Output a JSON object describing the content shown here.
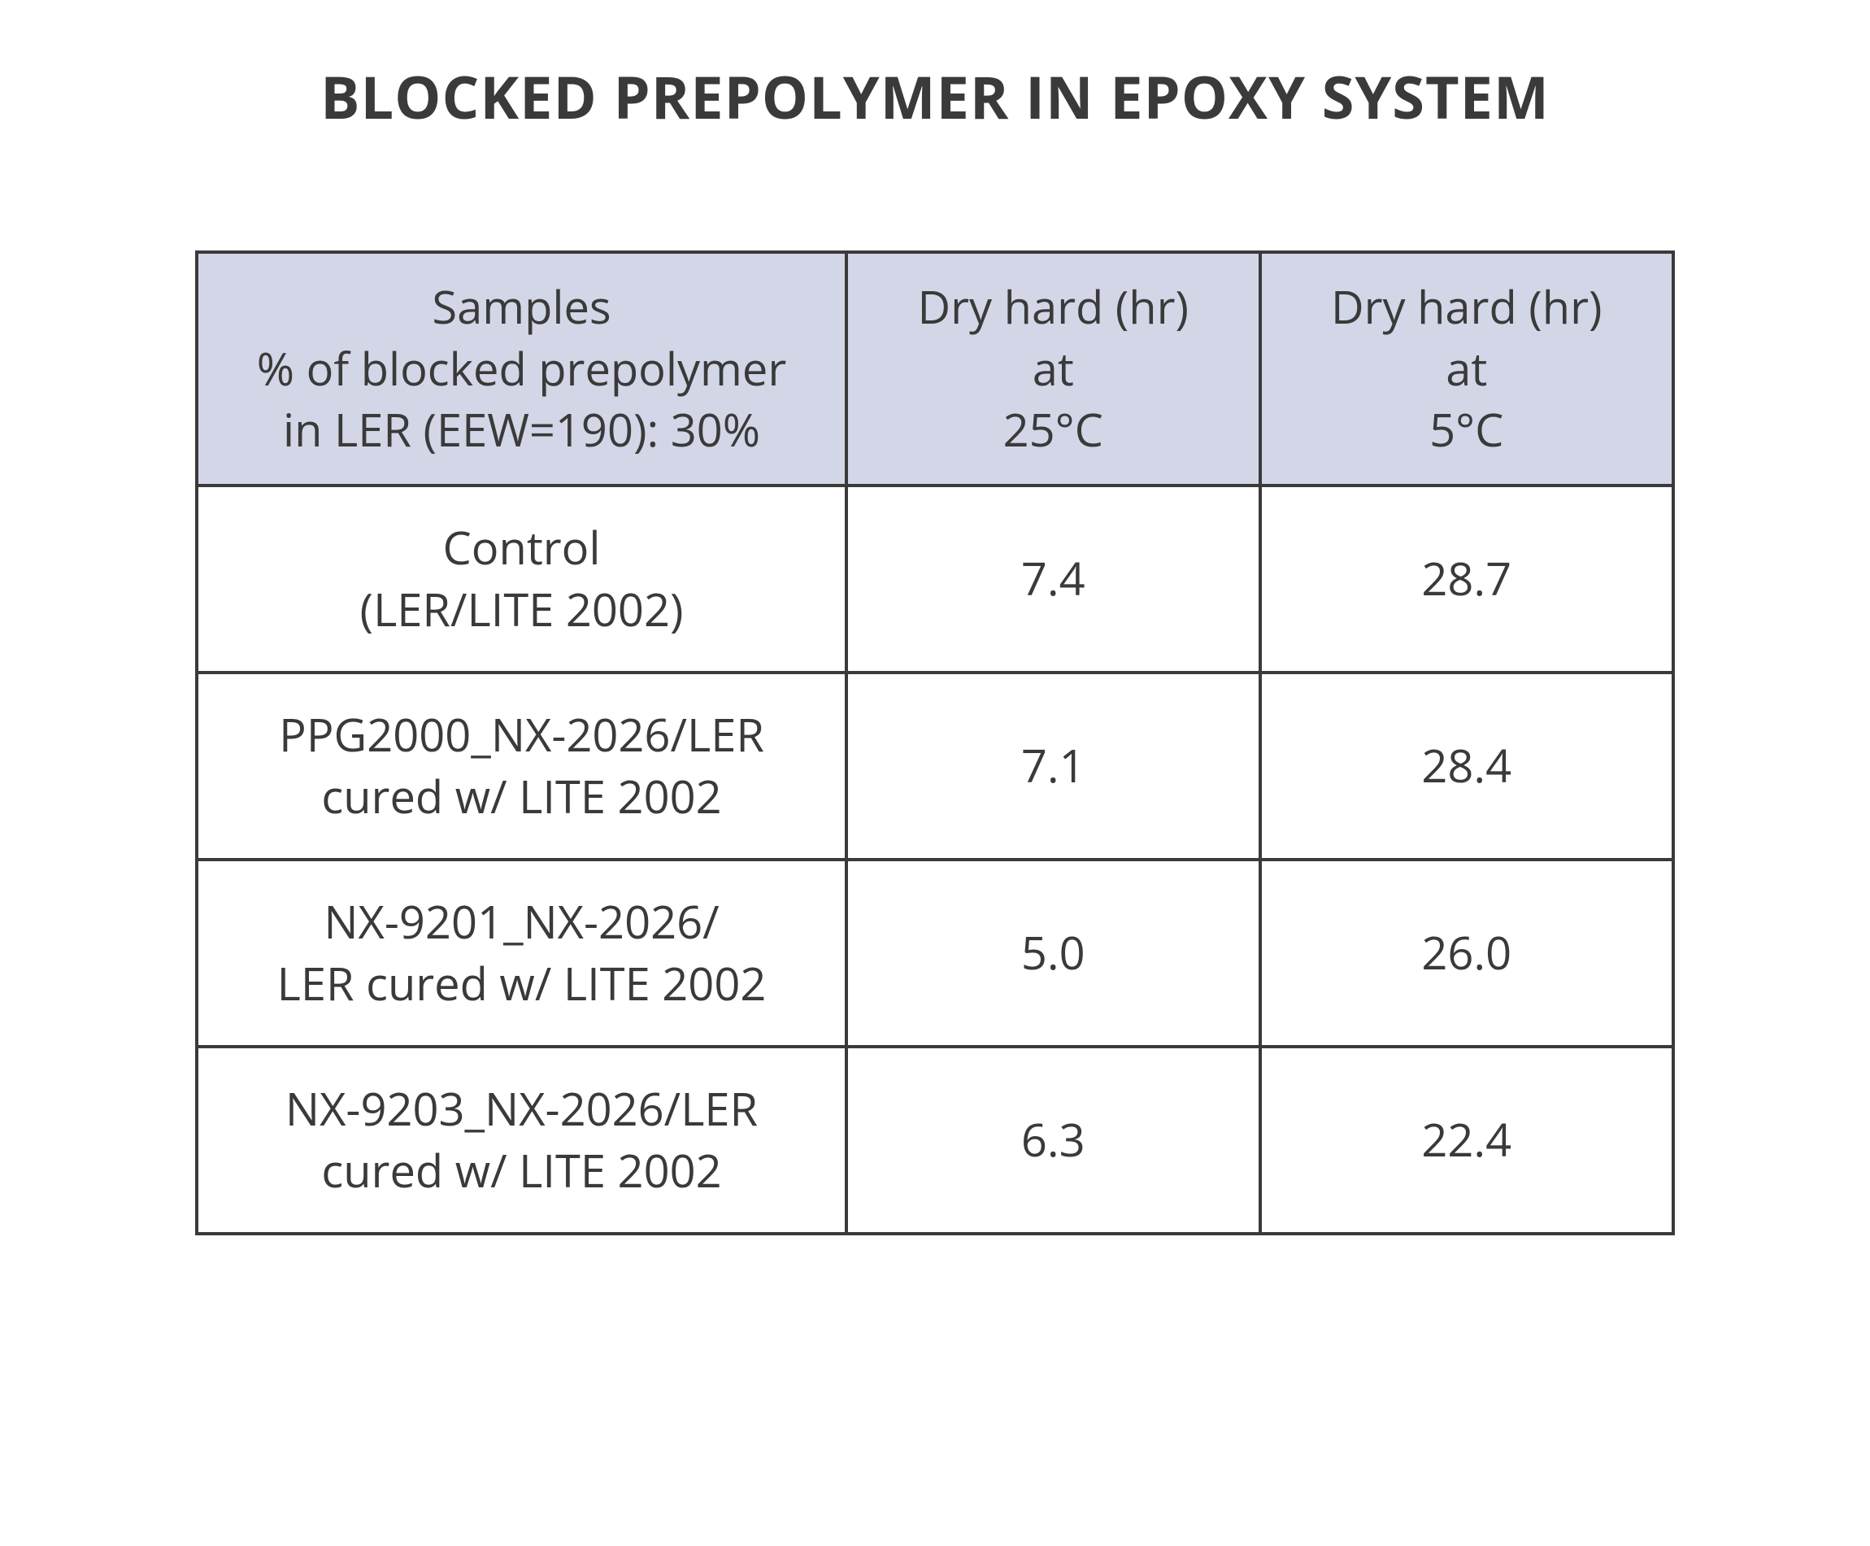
{
  "page": {
    "title": "BLOCKED PREPOLYMER IN EPOXY SYSTEM"
  },
  "table": {
    "type": "table",
    "header_bg": "#d3d6e6",
    "body_bg": "#ffffff",
    "border_color": "#3a3a3a",
    "border_width": 4,
    "text_color": "#3a3a3a",
    "font_size_body": 56,
    "font_size_title": 72,
    "column_widths_pct": [
      44,
      28,
      28
    ],
    "columns": {
      "samples": {
        "line1": "Samples",
        "line2": "% of blocked prepolymer",
        "line3": "in LER (EEW=190): 30%"
      },
      "dry25": {
        "line1": "Dry hard (hr)",
        "line2": "at",
        "line3": "25°C"
      },
      "dry5": {
        "line1": "Dry hard (hr)",
        "line2": "at",
        "line3": "5°C"
      }
    },
    "rows": [
      {
        "sample_line1": "Control",
        "sample_line2": "(LER/LITE 2002)",
        "val25": "7.4",
        "val5": "28.7"
      },
      {
        "sample_line1": "PPG2000_NX-2026/LER",
        "sample_line2": "cured w/ LITE 2002",
        "val25": "7.1",
        "val5": "28.4"
      },
      {
        "sample_line1": "NX-9201_NX-2026/",
        "sample_line2": "LER cured w/ LITE 2002",
        "val25": "5.0",
        "val5": "26.0"
      },
      {
        "sample_line1": "NX-9203_NX-2026/LER",
        "sample_line2": "cured w/ LITE 2002",
        "val25": "6.3",
        "val5": "22.4"
      }
    ]
  }
}
